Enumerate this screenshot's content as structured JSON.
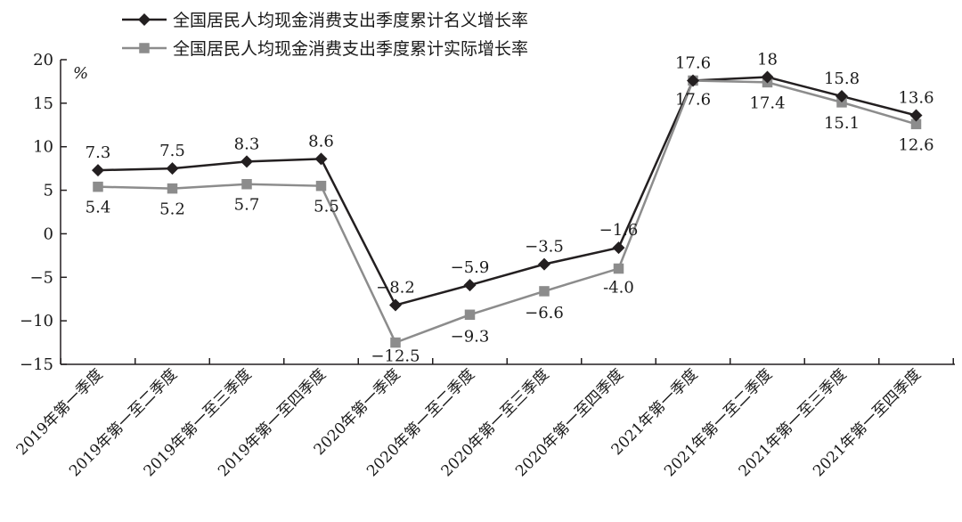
{
  "chart_data": {
    "type": "line",
    "title": "",
    "xlabel": "",
    "ylabel": "%",
    "ylim": [
      -15,
      20
    ],
    "yticks": [
      20,
      15,
      10,
      5,
      0,
      -5,
      -10,
      -15
    ],
    "ytick_labels": [
      "20",
      "15",
      "10",
      "5",
      "0",
      "−5",
      "−10",
      "−15"
    ],
    "grid": false,
    "legend_position": "top-left",
    "categories": [
      "2019年第一季度",
      "2019年第一至二季度",
      "2019年第一至三季度",
      "2019年第一至四季度",
      "2020年第一季度",
      "2020年第一至二季度",
      "2020年第一至三季度",
      "2020年第一至四季度",
      "2021年第一季度",
      "2021年第一至二季度",
      "2021年第一至三季度",
      "2021年第一至四季度"
    ],
    "series": [
      {
        "name": "全国居民人均现金消费支出季度累计名义增长率",
        "color": "#231f20",
        "marker": "diamond",
        "values": [
          7.3,
          7.5,
          8.3,
          8.6,
          -8.2,
          -5.9,
          -3.5,
          -1.6,
          17.6,
          18,
          15.8,
          13.6
        ],
        "labels": [
          "7.3",
          "7.5",
          "8.3",
          "8.6",
          "−8.2",
          "−5.9",
          "−3.5",
          "−1.6",
          "17.6",
          "18",
          "15.8",
          "13.6"
        ]
      },
      {
        "name": "全国居民人均现金消费支出季度累计实际增长率",
        "color": "#8c8c8c",
        "marker": "square",
        "values": [
          5.4,
          5.2,
          5.7,
          5.5,
          -12.5,
          -9.3,
          -6.6,
          -4.0,
          17.6,
          17.4,
          15.1,
          12.6
        ],
        "labels": [
          "5.4",
          "5.2",
          "5.7",
          "5.5",
          "−12.5",
          "−9.3",
          "−6.6",
          "-4.0",
          "17.6",
          "17.4",
          "15.1",
          "12.6"
        ]
      }
    ]
  }
}
